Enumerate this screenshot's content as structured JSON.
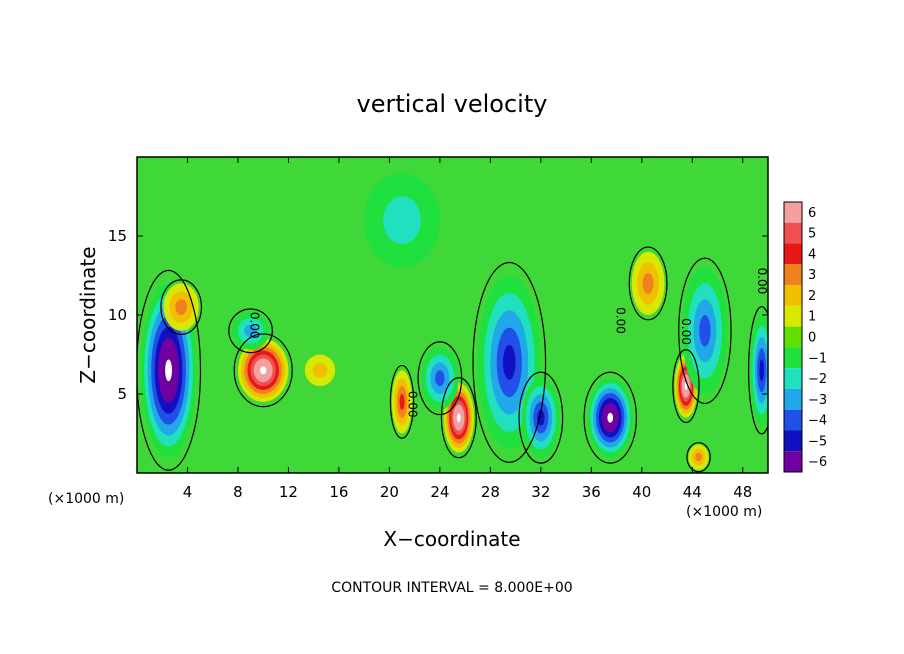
{
  "chart_data": {
    "type": "heatmap",
    "title": "vertical velocity",
    "xlabel": "X−coordinate",
    "ylabel": "Z−coordinate",
    "x_unit_left": "(×1000 m)",
    "x_unit_right": "(×1000 m)",
    "xlim": [
      0,
      50
    ],
    "ylim": [
      0,
      20
    ],
    "x_ticks": [
      4,
      8,
      12,
      16,
      20,
      24,
      28,
      32,
      36,
      40,
      44,
      48
    ],
    "y_ticks": [
      5,
      10,
      15
    ],
    "colorbar": {
      "ticks": [
        6,
        5,
        4,
        3,
        2,
        1,
        0,
        -1,
        -2,
        -3,
        -4,
        -5,
        -6
      ],
      "tick_labels": [
        "6",
        "5",
        "4",
        "3",
        "2",
        "1",
        "0",
        "−1",
        "−2",
        "−3",
        "−4",
        "−5",
        "−6"
      ],
      "colors": [
        "#f4a0a0",
        "#f05050",
        "#e81818",
        "#f08020",
        "#f0c000",
        "#d8e800",
        "#60e000",
        "#20e040",
        "#20e0c0",
        "#20a8e8",
        "#2050e8",
        "#1010c0",
        "#7000a0"
      ]
    },
    "contour_label": "0.00",
    "footer": "CONTOUR INTERVAL = 8.000E+00",
    "features": [
      {
        "x": 2.5,
        "z": 6.5,
        "w": -8,
        "sx": 2.2,
        "sz": 5.5
      },
      {
        "x": 3.5,
        "z": 10.5,
        "w": 3,
        "sx": 1.4,
        "sz": 1.5
      },
      {
        "x": 10,
        "z": 6.5,
        "w": 8,
        "sx": 2.0,
        "sz": 2.0
      },
      {
        "x": 9,
        "z": 9,
        "w": -3,
        "sx": 1.5,
        "sz": 1.2
      },
      {
        "x": 14.5,
        "z": 6.5,
        "w": 2,
        "sx": 1.2,
        "sz": 1.0
      },
      {
        "x": 21,
        "z": 4.5,
        "w": 3.5,
        "sx": 0.8,
        "sz": 2.0
      },
      {
        "x": 25.5,
        "z": 3.5,
        "w": 8,
        "sx": 1.2,
        "sz": 2.2
      },
      {
        "x": 24,
        "z": 6,
        "w": -4,
        "sx": 1.5,
        "sz": 2.0
      },
      {
        "x": 29.5,
        "z": 7,
        "w": -4.5,
        "sx": 2.5,
        "sz": 5.5
      },
      {
        "x": 32,
        "z": 3.5,
        "w": -5,
        "sx": 1.5,
        "sz": 2.5
      },
      {
        "x": 37.5,
        "z": 3.5,
        "w": -8,
        "sx": 1.8,
        "sz": 2.5
      },
      {
        "x": 40.5,
        "z": 12,
        "w": 3,
        "sx": 1.3,
        "sz": 2.0
      },
      {
        "x": 43.5,
        "z": 5.5,
        "w": 8,
        "sx": 0.9,
        "sz": 2.0
      },
      {
        "x": 45,
        "z": 9,
        "w": -3.5,
        "sx": 1.8,
        "sz": 4.0
      },
      {
        "x": 49.5,
        "z": 6.5,
        "w": -5,
        "sx": 0.9,
        "sz": 3.5
      },
      {
        "x": 44.5,
        "z": 1,
        "w": 3,
        "sx": 0.8,
        "sz": 0.8
      },
      {
        "x": 21,
        "z": 16,
        "w": -1.5,
        "sx": 3.0,
        "sz": 3.0
      }
    ]
  }
}
